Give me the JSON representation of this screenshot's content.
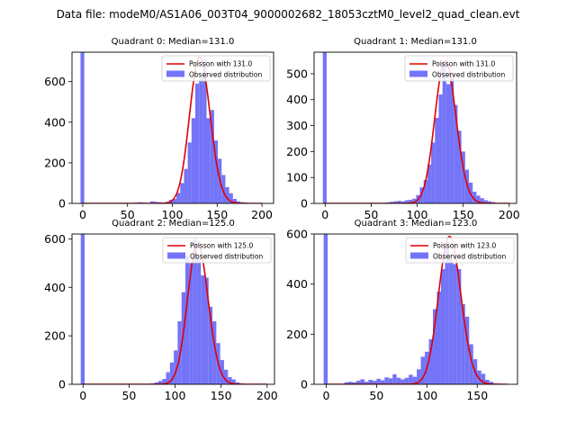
{
  "suptitle": "Data file: modeM0/AS1A06_003T04_9000002682_18053cztM0_level2_quad_clean.evt",
  "colors": {
    "bars": "#7474f8",
    "curve": "#e00000",
    "axis": "#000000"
  },
  "chart_data": [
    {
      "type": "bar",
      "title": "Quadrant 0: Median=131.0",
      "xlim": [
        -12,
        213
      ],
      "ylim": [
        0,
        745
      ],
      "xticks": [
        0,
        50,
        100,
        150,
        200
      ],
      "yticks": [
        0,
        200,
        400,
        600
      ],
      "bin_width": 4.2,
      "bins": [
        [
          -2.5,
          745
        ],
        [
          58.4,
          4
        ],
        [
          62.6,
          6
        ],
        [
          66.8,
          4
        ],
        [
          71.0,
          2
        ],
        [
          75.2,
          10
        ],
        [
          79.4,
          8
        ],
        [
          83.6,
          6
        ],
        [
          87.8,
          4
        ],
        [
          92.0,
          8
        ],
        [
          96.2,
          18
        ],
        [
          100.4,
          22
        ],
        [
          104.6,
          52
        ],
        [
          108.8,
          100
        ],
        [
          113.0,
          170
        ],
        [
          117.2,
          300
        ],
        [
          121.4,
          420
        ],
        [
          125.6,
          590
        ],
        [
          129.8,
          620
        ],
        [
          134.0,
          710
        ],
        [
          138.2,
          420
        ],
        [
          142.4,
          460
        ],
        [
          146.6,
          310
        ],
        [
          150.8,
          220
        ],
        [
          155.0,
          140
        ],
        [
          159.2,
          80
        ],
        [
          163.4,
          50
        ],
        [
          167.6,
          22
        ],
        [
          171.8,
          10
        ],
        [
          176.0,
          6
        ],
        [
          180.2,
          4
        ],
        [
          184.4,
          2
        ]
      ],
      "series": [
        {
          "name": "Poisson with 131.0",
          "kind": "poisson",
          "lambda": 131.0,
          "peak": 720,
          "x_range": [
            0,
            200
          ]
        },
        {
          "name": "Observed distribution",
          "kind": "histogram"
        }
      ],
      "legend": "top-right"
    },
    {
      "type": "bar",
      "title": "Quadrant 1: Median=131.0",
      "xlim": [
        -12,
        208
      ],
      "ylim": [
        0,
        583
      ],
      "xticks": [
        0,
        50,
        100,
        150,
        200
      ],
      "yticks": [
        0,
        100,
        200,
        300,
        400,
        500
      ],
      "bin_width": 4.1,
      "bins": [
        [
          -2.5,
          583
        ],
        [
          66.0,
          4
        ],
        [
          70.1,
          6
        ],
        [
          74.2,
          8
        ],
        [
          78.3,
          10
        ],
        [
          82.4,
          8
        ],
        [
          86.5,
          12
        ],
        [
          90.6,
          14
        ],
        [
          94.7,
          18
        ],
        [
          98.8,
          32
        ],
        [
          102.9,
          62
        ],
        [
          107.0,
          90
        ],
        [
          111.1,
          150
        ],
        [
          115.2,
          235
        ],
        [
          119.3,
          330
        ],
        [
          123.4,
          420
        ],
        [
          127.5,
          540
        ],
        [
          131.6,
          460
        ],
        [
          135.7,
          500
        ],
        [
          139.8,
          380
        ],
        [
          143.9,
          280
        ],
        [
          148.0,
          200
        ],
        [
          152.1,
          130
        ],
        [
          156.2,
          80
        ],
        [
          160.3,
          45
        ],
        [
          164.4,
          30
        ],
        [
          168.5,
          20
        ],
        [
          172.6,
          12
        ],
        [
          176.7,
          8
        ],
        [
          180.8,
          5
        ]
      ],
      "series": [
        {
          "name": "Poisson with 131.0",
          "kind": "poisson",
          "lambda": 131.0,
          "peak": 550,
          "x_range": [
            0,
            200
          ]
        },
        {
          "name": "Observed distribution",
          "kind": "histogram"
        }
      ],
      "legend": "top-right"
    },
    {
      "type": "bar",
      "title": "Quadrant 2: Median=125.0",
      "xlim": [
        -12,
        208
      ],
      "ylim": [
        0,
        620
      ],
      "xticks": [
        0,
        50,
        100,
        150,
        200
      ],
      "yticks": [
        0,
        200,
        400,
        600
      ],
      "bin_width": 4.2,
      "bins": [
        [
          -2.5,
          620
        ],
        [
          73.4,
          4
        ],
        [
          77.6,
          8
        ],
        [
          81.8,
          14
        ],
        [
          86.0,
          22
        ],
        [
          90.2,
          50
        ],
        [
          94.4,
          90
        ],
        [
          98.6,
          140
        ],
        [
          102.8,
          260
        ],
        [
          107.0,
          380
        ],
        [
          111.2,
          530
        ],
        [
          115.4,
          500
        ],
        [
          119.6,
          600
        ],
        [
          123.8,
          520
        ],
        [
          128.0,
          450
        ],
        [
          132.2,
          440
        ],
        [
          136.4,
          320
        ],
        [
          140.6,
          260
        ],
        [
          144.8,
          170
        ],
        [
          149.0,
          100
        ],
        [
          153.2,
          60
        ],
        [
          157.4,
          30
        ],
        [
          161.6,
          20
        ],
        [
          165.8,
          8
        ],
        [
          170.0,
          4
        ]
      ],
      "series": [
        {
          "name": "Poisson with 125.0",
          "kind": "poisson",
          "lambda": 125.0,
          "peak": 580,
          "x_range": [
            0,
            200
          ]
        },
        {
          "name": "Observed distribution",
          "kind": "histogram"
        }
      ],
      "legend": "top-right"
    },
    {
      "type": "bar",
      "title": "Quadrant 3: Median=123.0",
      "xlim": [
        -12,
        190
      ],
      "ylim": [
        0,
        600
      ],
      "xticks": [
        0,
        50,
        100,
        150
      ],
      "yticks": [
        0,
        200,
        400,
        600
      ],
      "bin_width": 4.0,
      "bins": [
        [
          -2.5,
          600
        ],
        [
          18.0,
          8
        ],
        [
          22.0,
          10
        ],
        [
          26.0,
          8
        ],
        [
          30.0,
          14
        ],
        [
          34.0,
          20
        ],
        [
          38.0,
          10
        ],
        [
          42.0,
          18
        ],
        [
          46.0,
          14
        ],
        [
          50.0,
          22
        ],
        [
          54.0,
          16
        ],
        [
          58.0,
          28
        ],
        [
          62.0,
          24
        ],
        [
          66.0,
          40
        ],
        [
          70.0,
          26
        ],
        [
          74.0,
          20
        ],
        [
          78.0,
          26
        ],
        [
          82.0,
          38
        ],
        [
          86.0,
          30
        ],
        [
          90.0,
          60
        ],
        [
          94.0,
          110
        ],
        [
          98.0,
          130
        ],
        [
          102.0,
          180
        ],
        [
          106.0,
          300
        ],
        [
          110.0,
          370
        ],
        [
          114.0,
          460
        ],
        [
          118.0,
          570
        ],
        [
          122.0,
          500
        ],
        [
          126.0,
          480
        ],
        [
          130.0,
          460
        ],
        [
          134.0,
          320
        ],
        [
          138.0,
          270
        ],
        [
          142.0,
          160
        ],
        [
          146.0,
          100
        ],
        [
          150.0,
          55
        ],
        [
          154.0,
          42
        ],
        [
          158.0,
          18
        ],
        [
          162.0,
          10
        ],
        [
          166.0,
          4
        ]
      ],
      "series": [
        {
          "name": "Poisson with 123.0",
          "kind": "poisson",
          "lambda": 123.0,
          "peak": 590,
          "x_range": [
            0,
            180
          ]
        },
        {
          "name": "Observed distribution",
          "kind": "histogram"
        }
      ],
      "legend": "top-right"
    }
  ]
}
